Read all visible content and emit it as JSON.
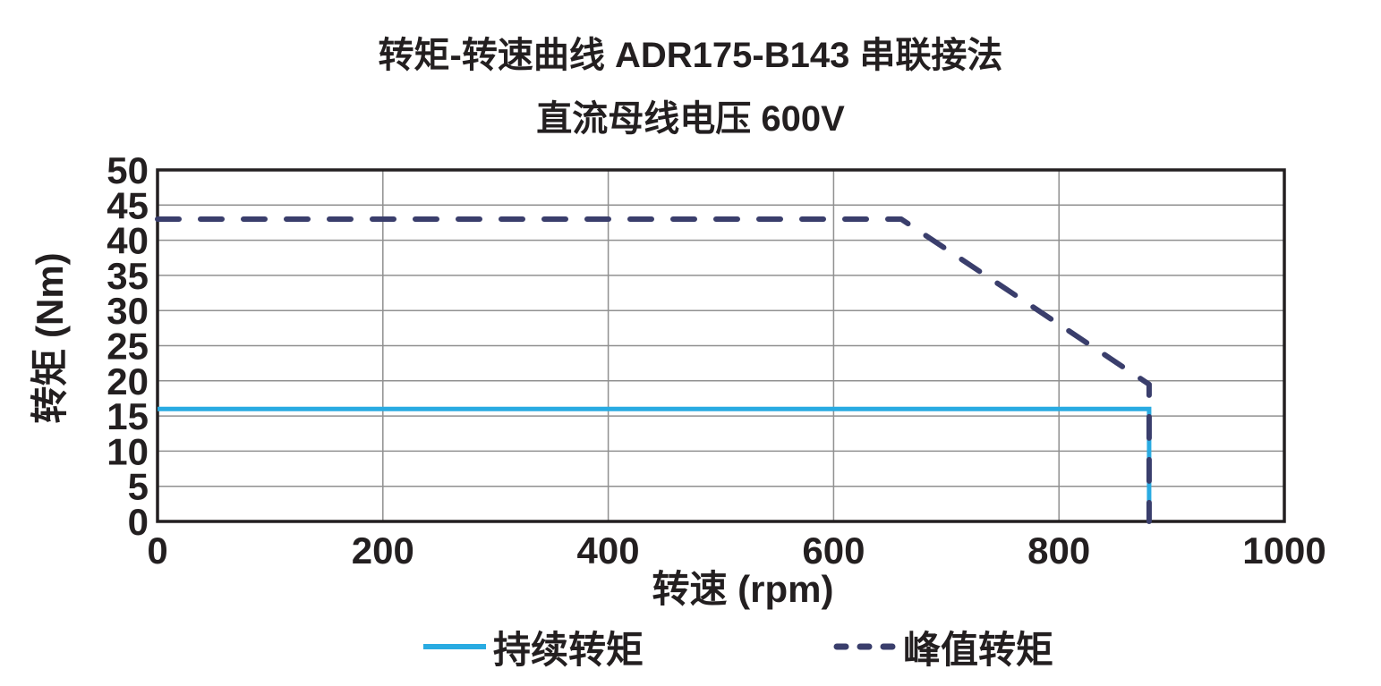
{
  "chart_data": {
    "type": "line",
    "title": "转矩-转速曲线 ADR175-B143 串联接法",
    "subtitle": "直流母线电压 600V",
    "xlabel": "转速 (rpm)",
    "ylabel": "转矩 (Nm)",
    "xlim": [
      0,
      1000
    ],
    "ylim": [
      0,
      50
    ],
    "xticks": [
      0,
      200,
      400,
      600,
      800,
      1000
    ],
    "yticks": [
      0,
      5,
      10,
      15,
      20,
      25,
      30,
      35,
      40,
      45,
      50
    ],
    "grid": true,
    "legend_position": "bottom",
    "series": [
      {
        "name": "持续转矩",
        "color": "#29abe2",
        "line_style": "solid",
        "points": [
          [
            0,
            16
          ],
          [
            880,
            16
          ],
          [
            880,
            0
          ]
        ]
      },
      {
        "name": "峰值转矩",
        "color": "#3a3e6c",
        "line_style": "dashed",
        "points": [
          [
            0,
            43
          ],
          [
            660,
            43
          ],
          [
            880,
            19.5
          ],
          [
            880,
            0
          ]
        ]
      }
    ],
    "colors": {
      "grid": "#909090",
      "frame": "#231f20",
      "text": "#231f20",
      "continuous_line": "#29abe2",
      "peak_line": "#3a3e6c"
    }
  }
}
